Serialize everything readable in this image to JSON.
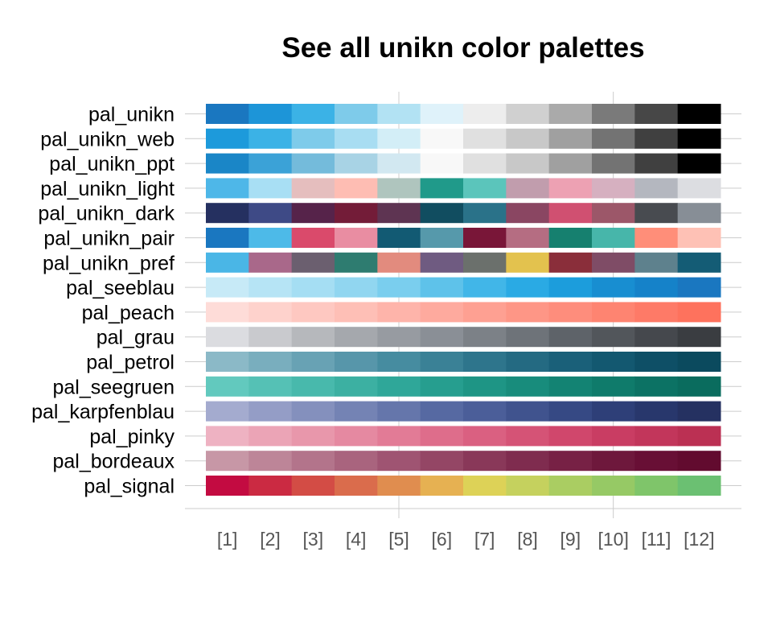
{
  "chart_data": {
    "type": "heatmap",
    "title": "See all unikn color palettes",
    "xlabel": "",
    "ylabel": "",
    "grid": true,
    "legend": "none",
    "x_ticks": [
      "[1]",
      "[2]",
      "[3]",
      "[4]",
      "[5]",
      "[6]",
      "[7]",
      "[8]",
      "[9]",
      "[10]",
      "[11]",
      "[12]"
    ],
    "grid_lines_at": [
      5,
      10
    ],
    "palettes": [
      {
        "name": "pal_unikn",
        "colors": [
          "#1A77C0",
          "#1D95D8",
          "#3BB2E6",
          "#7ECBEA",
          "#B2E2F3",
          "#DFF2FA",
          "#EDEDED",
          "#D0D0D0",
          "#AAAAAA",
          "#7A7A7A",
          "#474747",
          "#000000"
        ]
      },
      {
        "name": "pal_unikn_web",
        "colors": [
          "#1D9ADB",
          "#3BB2E6",
          "#7ECBEA",
          "#A8DDF2",
          "#D3EEF7",
          "#F8F8F8",
          "#E0E0E0",
          "#C8C8C8",
          "#A0A0A0",
          "#737373",
          "#404040",
          "#000000"
        ]
      },
      {
        "name": "pal_unikn_ppt",
        "colors": [
          "#1A86C7",
          "#3BA2D7",
          "#74BBDB",
          "#A8D3E5",
          "#D2E8F1",
          "#F8F8F8",
          "#E0E0E0",
          "#C8C8C8",
          "#A0A0A0",
          "#737373",
          "#404040",
          "#000000"
        ]
      },
      {
        "name": "pal_unikn_light",
        "colors": [
          "#4EB7E8",
          "#A8DFF4",
          "#E5BEBE",
          "#FEBDB3",
          "#AFC5BE",
          "#209A8A",
          "#5BC5BB",
          "#C19DAD",
          "#EDA1B3",
          "#D6B0C0",
          "#B4B7BF",
          "#DCDDE1"
        ]
      },
      {
        "name": "pal_unikn_dark",
        "colors": [
          "#253060",
          "#3E4A86",
          "#56234A",
          "#731C38",
          "#5E3452",
          "#114D60",
          "#2A7289",
          "#8A4662",
          "#D05071",
          "#9C5769",
          "#484B50",
          "#878E96"
        ]
      },
      {
        "name": "pal_unikn_pair",
        "colors": [
          "#1A77C0",
          "#4DBAE8",
          "#DA4A6B",
          "#E98DA2",
          "#125A73",
          "#5699AB",
          "#791638",
          "#B56D82",
          "#16806F",
          "#47B6AA",
          "#FF8E79",
          "#FEC1B5"
        ]
      },
      {
        "name": "pal_unikn_pref",
        "colors": [
          "#4AB6E6",
          "#A9688A",
          "#6B5F6F",
          "#2E7C70",
          "#E28B7E",
          "#6F5B81",
          "#6B706C",
          "#E3C24E",
          "#8A2E3A",
          "#7F4C66",
          "#5E818D",
          "#145C75"
        ]
      },
      {
        "name": "pal_seeblau",
        "colors": [
          "#C7EAF7",
          "#B6E4F5",
          "#A5DEF3",
          "#91D6F0",
          "#7ACEEE",
          "#5EC2EA",
          "#41B6E8",
          "#2AAAE4",
          "#1C9DDC",
          "#188ED1",
          "#1582C9",
          "#1A77C0"
        ]
      },
      {
        "name": "pal_peach",
        "colors": [
          "#FEDCD8",
          "#FED2CC",
          "#FEC8C1",
          "#FEBFB6",
          "#FEB4AA",
          "#FEAA9E",
          "#FEA092",
          "#FE9686",
          "#FE8D7C",
          "#FE8471",
          "#FE7A67",
          "#FE725D"
        ]
      },
      {
        "name": "pal_grau",
        "colors": [
          "#DBDCE0",
          "#C9CACE",
          "#B6B8BC",
          "#A5A8AD",
          "#979BA1",
          "#8A8F96",
          "#7C8187",
          "#6E7379",
          "#5E6369",
          "#52565B",
          "#45484D",
          "#3A3D41"
        ]
      },
      {
        "name": "pal_petrol",
        "colors": [
          "#8BB9C7",
          "#79AEBE",
          "#68A2B4",
          "#5796AA",
          "#468CA0",
          "#3A8196",
          "#2E758C",
          "#246A82",
          "#1A6079",
          "#135870",
          "#0E4F66",
          "#0B4A5E"
        ]
      },
      {
        "name": "pal_seegruen",
        "colors": [
          "#62C9BE",
          "#55C1B5",
          "#48B9AC",
          "#3CB0A2",
          "#2FA799",
          "#269E8F",
          "#1E9585",
          "#188C7C",
          "#138373",
          "#0F7B6B",
          "#0C7264",
          "#0A6C5E"
        ]
      },
      {
        "name": "pal_karpfenblau",
        "colors": [
          "#A4ABCF",
          "#949DC6",
          "#8490BD",
          "#7483B4",
          "#6576AB",
          "#5669A2",
          "#4B5E99",
          "#40538E",
          "#364984",
          "#2E3F78",
          "#28376C",
          "#253161"
        ]
      },
      {
        "name": "pal_pinky",
        "colors": [
          "#EEB2C2",
          "#EBA4B6",
          "#E897AB",
          "#E589A1",
          "#E27B96",
          "#DE6D8B",
          "#DA6081",
          "#D55376",
          "#D0476C",
          "#C93D63",
          "#C2365B",
          "#BB3053"
        ]
      },
      {
        "name": "pal_bordeaux",
        "colors": [
          "#C797A6",
          "#BD8598",
          "#B3748B",
          "#A9647E",
          "#9F5472",
          "#944665",
          "#893859",
          "#7F2C4F",
          "#772145",
          "#6E183C",
          "#680F35",
          "#620B2F"
        ]
      },
      {
        "name": "pal_signal",
        "colors": [
          "#C30B41",
          "#CB2A42",
          "#D34C45",
          "#DA6C4C",
          "#E08D4F",
          "#E6B152",
          "#DDD257",
          "#C5D15E",
          "#AACD62",
          "#96C965",
          "#7FC56A",
          "#6BC072"
        ]
      }
    ]
  }
}
